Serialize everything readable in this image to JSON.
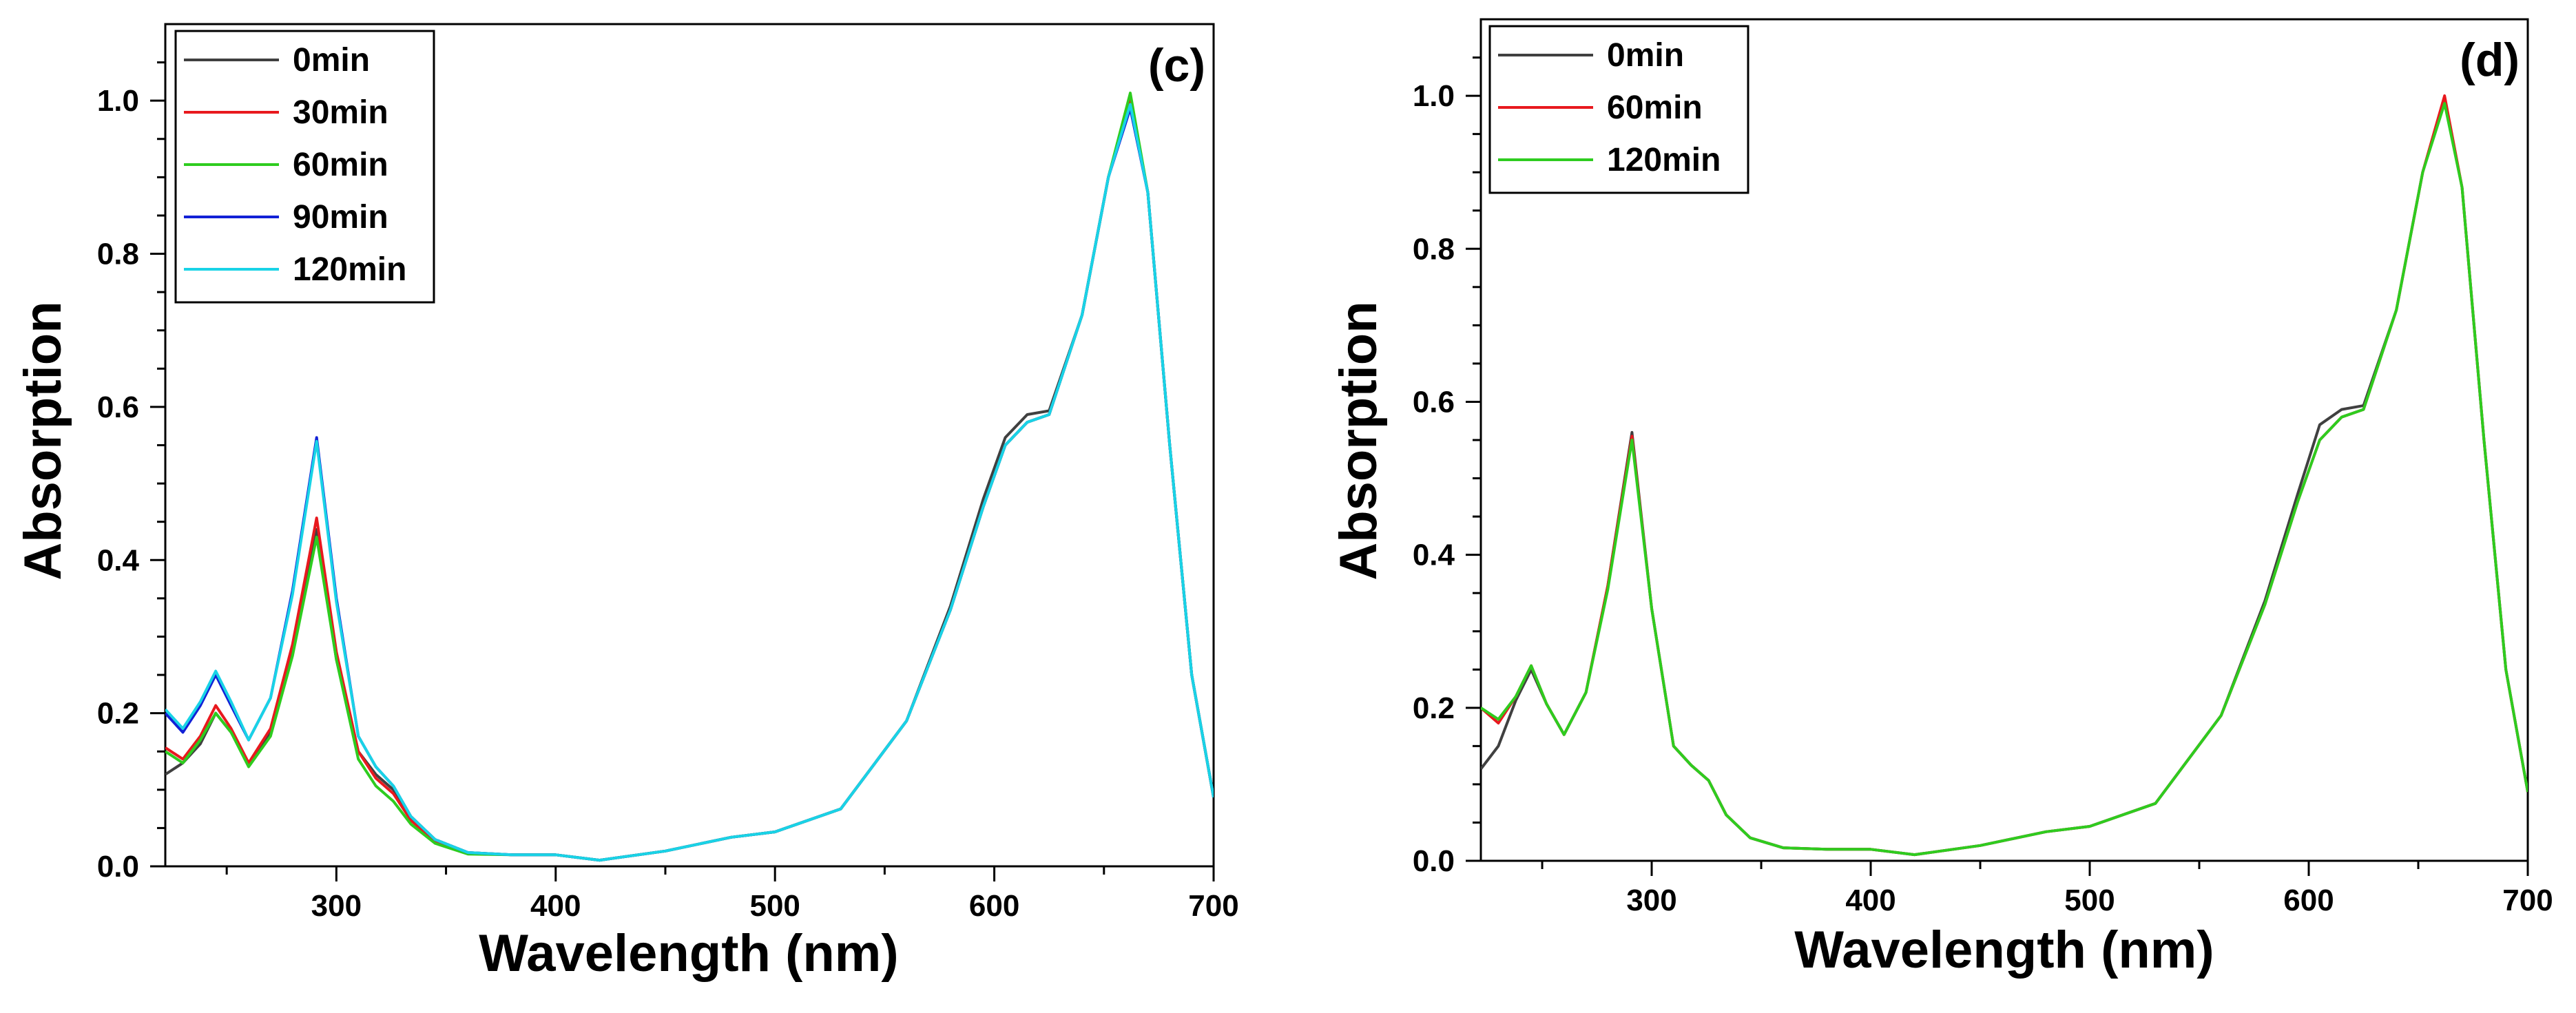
{
  "chart_data": [
    {
      "type": "line",
      "panel_label": "(c)",
      "xlabel": "Wavelength (nm)",
      "ylabel": "Absorption",
      "xlim": [
        222,
        700
      ],
      "ylim": [
        0,
        1.1
      ],
      "xticks": [
        300,
        400,
        500,
        600,
        700
      ],
      "xtick_labels": [
        "300",
        "400",
        "500",
        "600",
        "700"
      ],
      "yticks": [
        0.0,
        0.2,
        0.4,
        0.6,
        0.8,
        1.0
      ],
      "ytick_labels": [
        "0.0",
        "0.2",
        "0.4",
        "0.6",
        "0.8",
        "1.0"
      ],
      "legend_position": "top-left",
      "series": [
        {
          "name": "0min",
          "color": "#404040",
          "x": [
            222,
            230,
            238,
            245,
            252,
            260,
            270,
            280,
            291,
            300,
            310,
            318,
            326,
            334,
            345,
            360,
            380,
            400,
            420,
            450,
            480,
            500,
            530,
            560,
            580,
            595,
            605,
            615,
            625,
            640,
            652,
            662,
            670,
            680,
            690,
            700
          ],
          "y": [
            0.12,
            0.135,
            0.16,
            0.2,
            0.175,
            0.135,
            0.175,
            0.28,
            0.44,
            0.27,
            0.15,
            0.12,
            0.1,
            0.065,
            0.035,
            0.018,
            0.015,
            0.015,
            0.008,
            0.02,
            0.038,
            0.045,
            0.075,
            0.19,
            0.34,
            0.48,
            0.56,
            0.59,
            0.595,
            0.72,
            0.9,
            1.0,
            0.88,
            0.55,
            0.25,
            0.09
          ]
        },
        {
          "name": "30min",
          "color": "#e8191e",
          "x": [
            222,
            230,
            238,
            245,
            252,
            260,
            270,
            280,
            291,
            300,
            310,
            318,
            326,
            334,
            345,
            360,
            380,
            400,
            420,
            450,
            480,
            500,
            530,
            560,
            580,
            595,
            605,
            615,
            625,
            640,
            652,
            662,
            670,
            680,
            690,
            700
          ],
          "y": [
            0.155,
            0.14,
            0.17,
            0.21,
            0.18,
            0.135,
            0.18,
            0.29,
            0.455,
            0.28,
            0.15,
            0.115,
            0.095,
            0.06,
            0.033,
            0.017,
            0.015,
            0.015,
            0.008,
            0.02,
            0.038,
            0.045,
            0.075,
            0.19,
            0.335,
            0.47,
            0.55,
            0.58,
            0.59,
            0.72,
            0.9,
            1.005,
            0.88,
            0.55,
            0.25,
            0.09
          ]
        },
        {
          "name": "60min",
          "color": "#2ecc1f",
          "x": [
            222,
            230,
            238,
            245,
            252,
            260,
            270,
            280,
            291,
            300,
            310,
            318,
            326,
            334,
            345,
            360,
            380,
            400,
            420,
            450,
            480,
            500,
            530,
            560,
            580,
            595,
            605,
            615,
            625,
            640,
            652,
            662,
            670,
            680,
            690,
            700
          ],
          "y": [
            0.15,
            0.135,
            0.165,
            0.2,
            0.175,
            0.13,
            0.17,
            0.275,
            0.43,
            0.27,
            0.14,
            0.105,
            0.085,
            0.055,
            0.03,
            0.016,
            0.015,
            0.015,
            0.008,
            0.02,
            0.038,
            0.045,
            0.075,
            0.19,
            0.335,
            0.47,
            0.55,
            0.58,
            0.59,
            0.72,
            0.9,
            1.01,
            0.88,
            0.55,
            0.25,
            0.09
          ]
        },
        {
          "name": "90min",
          "color": "#1221d6",
          "x": [
            222,
            230,
            238,
            245,
            252,
            260,
            270,
            280,
            291,
            300,
            310,
            318,
            326,
            334,
            345,
            360,
            380,
            400,
            420,
            450,
            480,
            500,
            530,
            560,
            580,
            595,
            605,
            615,
            625,
            640,
            652,
            662,
            670,
            680,
            690,
            700
          ],
          "y": [
            0.2,
            0.175,
            0.21,
            0.25,
            0.21,
            0.165,
            0.22,
            0.36,
            0.56,
            0.35,
            0.17,
            0.13,
            0.105,
            0.065,
            0.035,
            0.018,
            0.015,
            0.015,
            0.008,
            0.02,
            0.038,
            0.045,
            0.075,
            0.19,
            0.335,
            0.47,
            0.55,
            0.58,
            0.59,
            0.72,
            0.9,
            0.99,
            0.88,
            0.55,
            0.25,
            0.09
          ]
        },
        {
          "name": "120min",
          "color": "#19d3e6",
          "x": [
            222,
            230,
            238,
            245,
            252,
            260,
            270,
            280,
            291,
            300,
            310,
            318,
            326,
            334,
            345,
            360,
            380,
            400,
            420,
            450,
            480,
            500,
            530,
            560,
            580,
            595,
            605,
            615,
            625,
            640,
            652,
            662,
            670,
            680,
            690,
            700
          ],
          "y": [
            0.205,
            0.18,
            0.215,
            0.255,
            0.215,
            0.165,
            0.22,
            0.355,
            0.555,
            0.345,
            0.17,
            0.13,
            0.105,
            0.065,
            0.035,
            0.018,
            0.015,
            0.015,
            0.008,
            0.02,
            0.038,
            0.045,
            0.075,
            0.19,
            0.335,
            0.47,
            0.55,
            0.58,
            0.59,
            0.72,
            0.9,
            0.995,
            0.88,
            0.55,
            0.25,
            0.09
          ]
        }
      ]
    },
    {
      "type": "line",
      "panel_label": "(d)",
      "xlabel": "Wavelength (nm)",
      "ylabel": "Absorption",
      "xlim": [
        222,
        700
      ],
      "ylim": [
        0,
        1.1
      ],
      "xticks": [
        300,
        400,
        500,
        600,
        700
      ],
      "xtick_labels": [
        "300",
        "400",
        "500",
        "600",
        "700"
      ],
      "yticks": [
        0.0,
        0.2,
        0.4,
        0.6,
        0.8,
        1.0
      ],
      "ytick_labels": [
        "0.0",
        "0.2",
        "0.4",
        "0.6",
        "0.8",
        "1.0"
      ],
      "legend_position": "top-left",
      "series": [
        {
          "name": "0min",
          "color": "#404040",
          "x": [
            222,
            230,
            238,
            245,
            252,
            260,
            270,
            280,
            291,
            300,
            310,
            318,
            326,
            334,
            345,
            360,
            380,
            400,
            420,
            450,
            480,
            500,
            530,
            560,
            580,
            595,
            605,
            615,
            625,
            640,
            652,
            662,
            670,
            680,
            690,
            700
          ],
          "y": [
            0.12,
            0.15,
            0.21,
            0.25,
            0.205,
            0.165,
            0.22,
            0.36,
            0.56,
            0.33,
            0.15,
            0.125,
            0.105,
            0.06,
            0.03,
            0.017,
            0.015,
            0.015,
            0.008,
            0.02,
            0.038,
            0.045,
            0.075,
            0.19,
            0.34,
            0.48,
            0.57,
            0.59,
            0.595,
            0.72,
            0.9,
            0.995,
            0.88,
            0.55,
            0.25,
            0.09
          ]
        },
        {
          "name": "60min",
          "color": "#e8191e",
          "x": [
            222,
            230,
            238,
            245,
            252,
            260,
            270,
            280,
            291,
            300,
            310,
            318,
            326,
            334,
            345,
            360,
            380,
            400,
            420,
            450,
            480,
            500,
            530,
            560,
            580,
            595,
            605,
            615,
            625,
            640,
            652,
            662,
            670,
            680,
            690,
            700
          ],
          "y": [
            0.2,
            0.18,
            0.215,
            0.255,
            0.205,
            0.165,
            0.22,
            0.36,
            0.555,
            0.33,
            0.15,
            0.125,
            0.105,
            0.06,
            0.03,
            0.017,
            0.015,
            0.015,
            0.008,
            0.02,
            0.038,
            0.045,
            0.075,
            0.19,
            0.335,
            0.47,
            0.55,
            0.58,
            0.59,
            0.72,
            0.9,
            1.0,
            0.88,
            0.55,
            0.25,
            0.09
          ]
        },
        {
          "name": "120min",
          "color": "#2ecc1f",
          "x": [
            222,
            230,
            238,
            245,
            252,
            260,
            270,
            280,
            291,
            300,
            310,
            318,
            326,
            334,
            345,
            360,
            380,
            400,
            420,
            450,
            480,
            500,
            530,
            560,
            580,
            595,
            605,
            615,
            625,
            640,
            652,
            662,
            670,
            680,
            690,
            700
          ],
          "y": [
            0.2,
            0.185,
            0.215,
            0.255,
            0.205,
            0.165,
            0.22,
            0.355,
            0.55,
            0.33,
            0.15,
            0.125,
            0.105,
            0.06,
            0.03,
            0.017,
            0.015,
            0.015,
            0.008,
            0.02,
            0.038,
            0.045,
            0.075,
            0.19,
            0.335,
            0.47,
            0.55,
            0.58,
            0.59,
            0.72,
            0.9,
            0.99,
            0.88,
            0.55,
            0.25,
            0.09
          ]
        }
      ]
    }
  ]
}
